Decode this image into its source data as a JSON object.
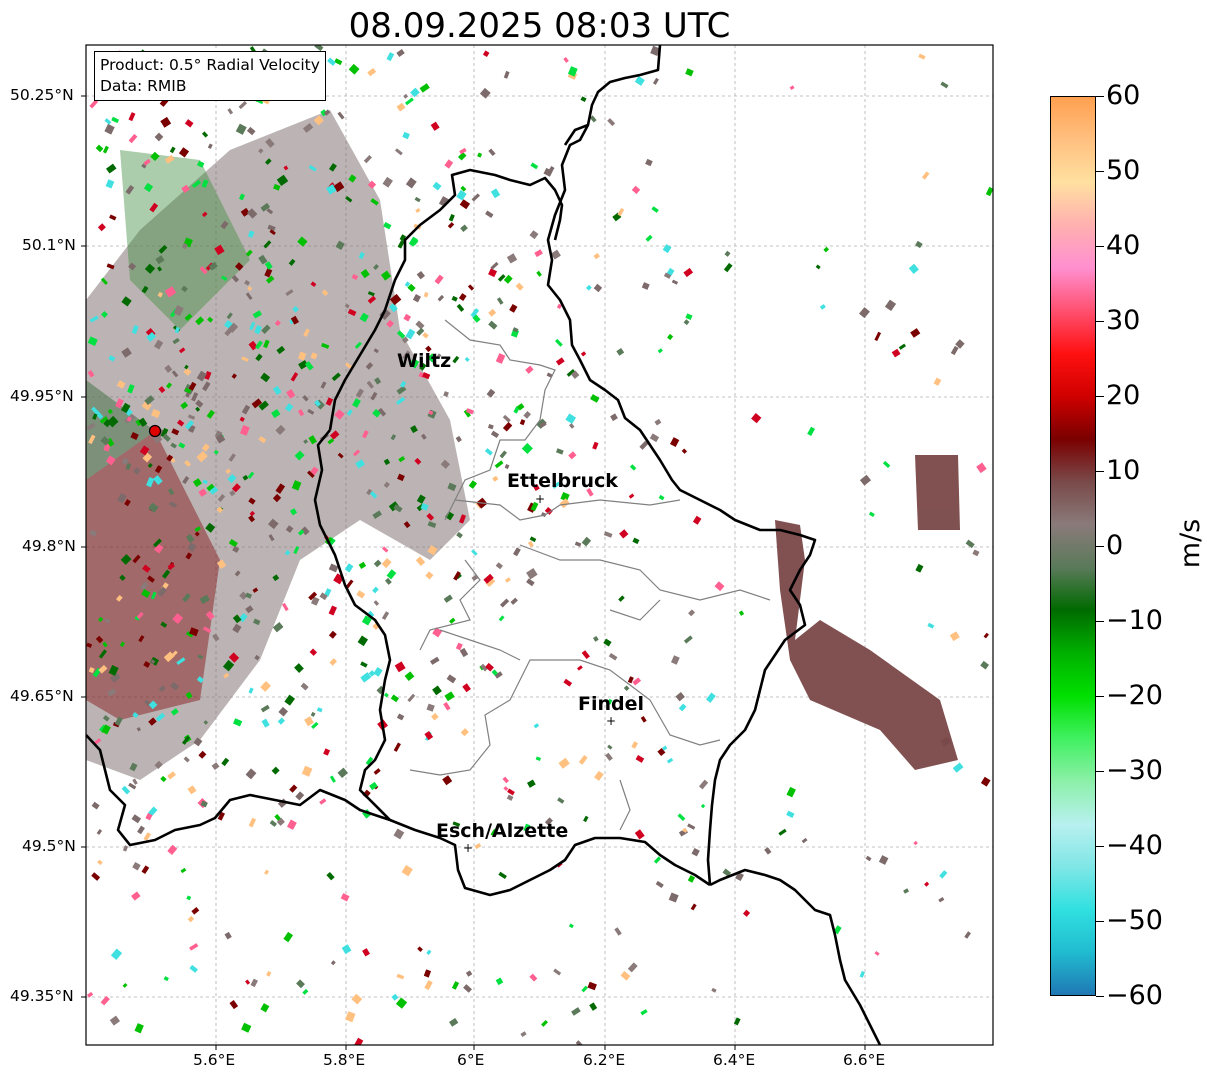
{
  "title": "08.09.2025 08:03 UTC",
  "info": {
    "product": "Product: 0.5° Radial Velocity",
    "data_source": "Data: RMIB"
  },
  "axes": {
    "lat_ticks": [
      "50.25°N",
      "50.1°N",
      "49.95°N",
      "49.8°N",
      "49.65°N",
      "49.5°N",
      "49.35°N"
    ],
    "lon_ticks": [
      "5.6°E",
      "5.8°E",
      "6°E",
      "6.2°E",
      "6.4°E",
      "6.6°E"
    ]
  },
  "places": [
    {
      "name": "Wiltz",
      "marker": false
    },
    {
      "name": "Ettelbruck",
      "marker": true
    },
    {
      "name": "Findel",
      "marker": true
    },
    {
      "name": "Esch/Alzette",
      "marker": true
    }
  ],
  "colorbar": {
    "unit": "m/s",
    "ticks": [
      "60",
      "50",
      "40",
      "30",
      "20",
      "10",
      "0",
      "−10",
      "−20",
      "−30",
      "−40",
      "−50",
      "−60"
    ],
    "stops": [
      "#1f78b4",
      "#20bcd0",
      "#30e0e0",
      "#80e6e6",
      "#b8f0f0",
      "#8cf0a8",
      "#40f060",
      "#00e000",
      "#00b000",
      "#006a00",
      "#5a7a5a",
      "#8a7a7a",
      "#7a4a4a",
      "#7a0000",
      "#d00000",
      "#ff1010",
      "#ff5070",
      "#ff90d0",
      "#ffb0b0",
      "#ffe0a0",
      "#ffc080",
      "#ffa050"
    ]
  }
}
